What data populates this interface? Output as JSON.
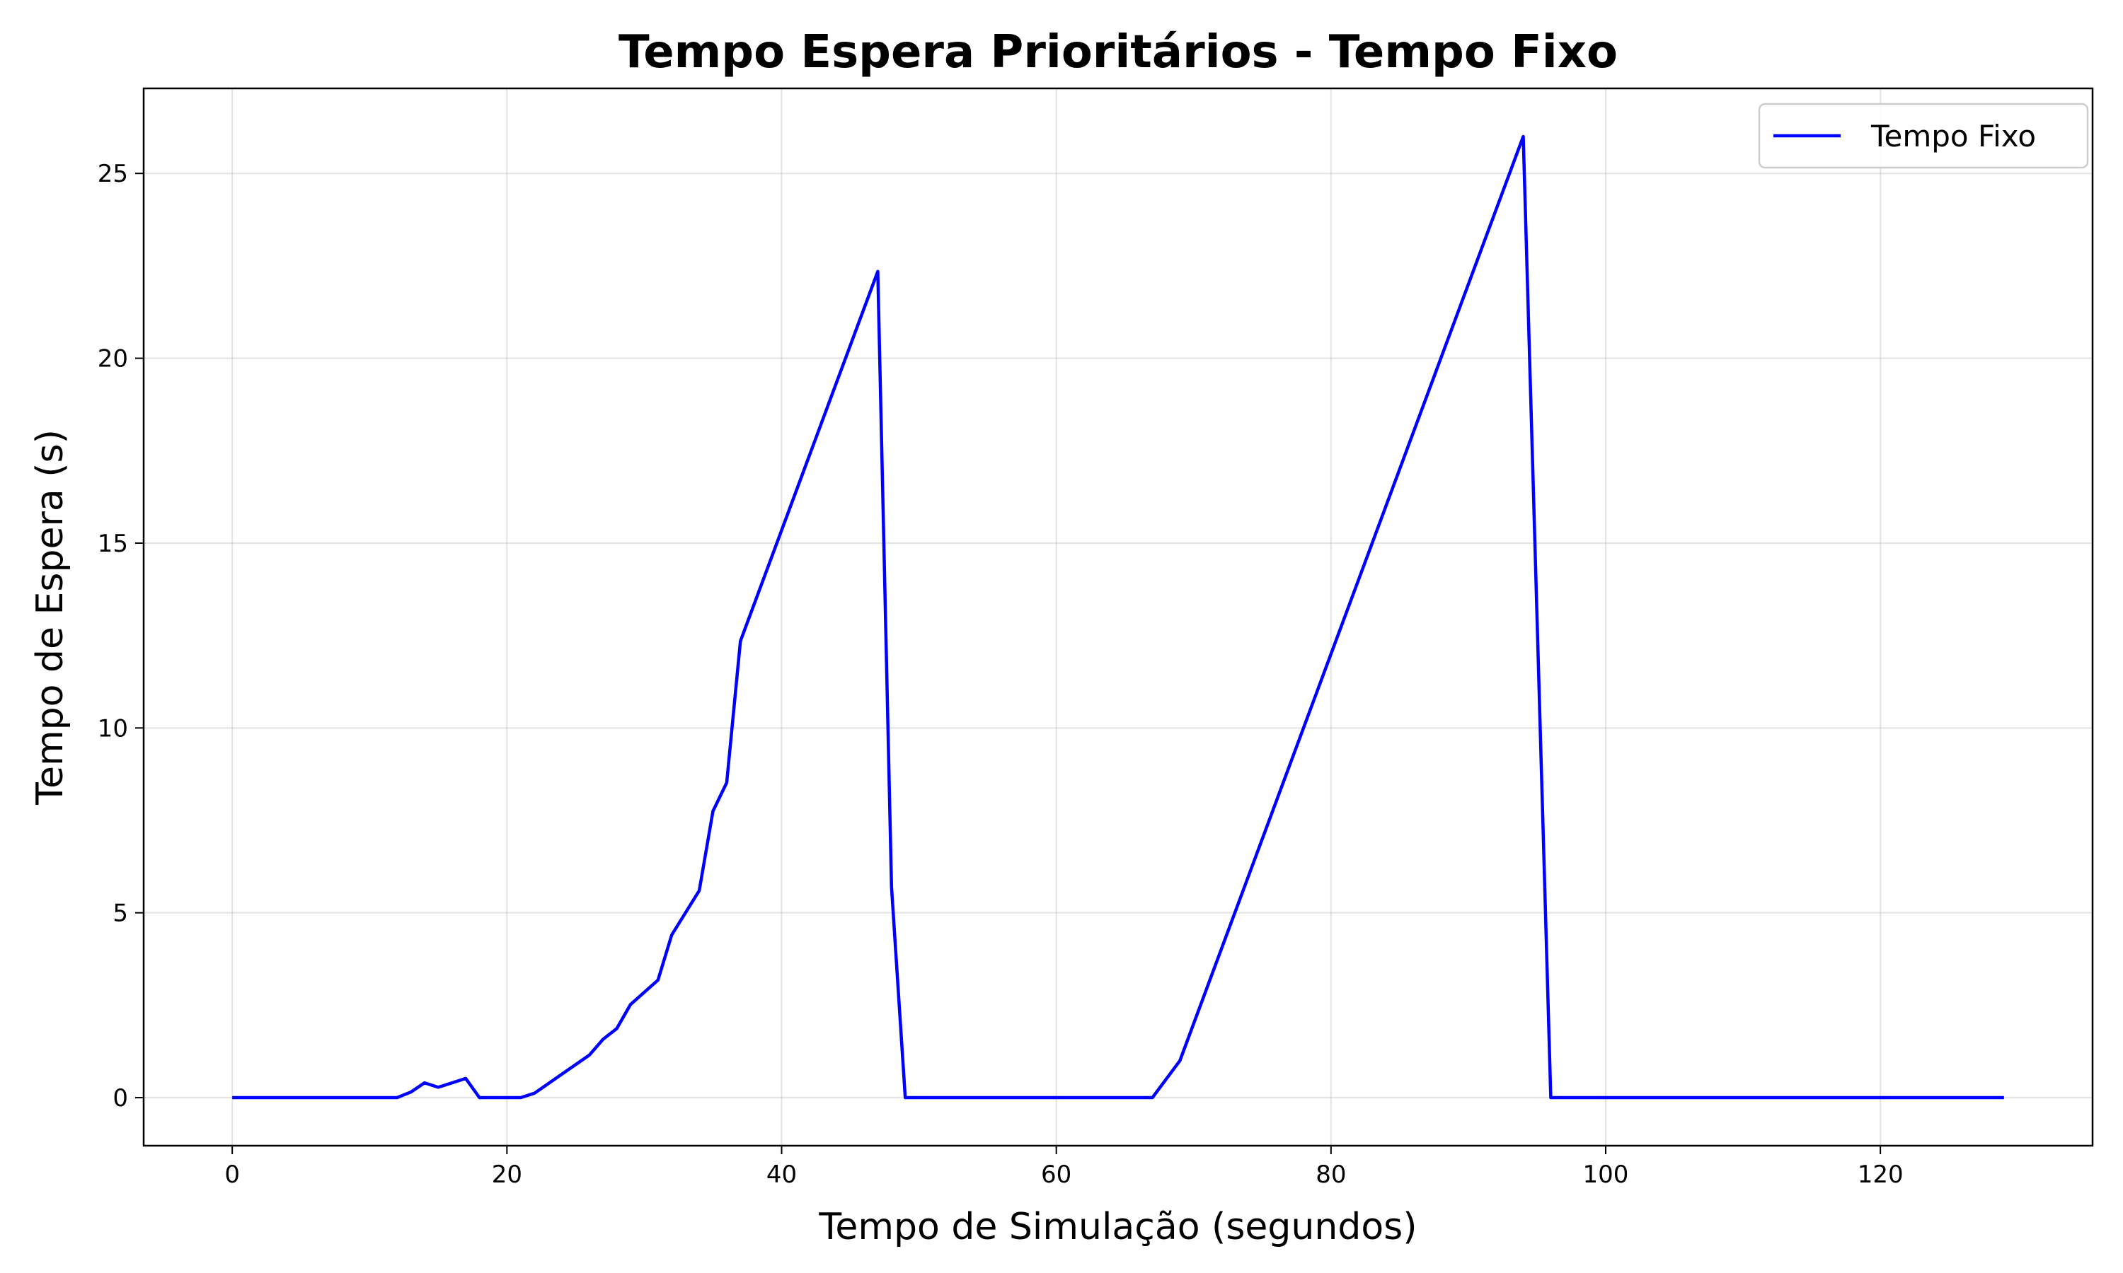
{
  "chart_data": {
    "type": "line",
    "title": "Tempo Espera Prioritários - Tempo Fixo",
    "xlabel": "Tempo de Simulação (segundos)",
    "ylabel": "Tempo de Espera (s)",
    "xlim": [
      -6.45,
      135.45
    ],
    "ylim": [
      -1.3,
      27.3
    ],
    "xticks": [
      0,
      20,
      40,
      60,
      80,
      100,
      120
    ],
    "yticks": [
      0,
      5,
      10,
      15,
      20,
      25
    ],
    "grid": true,
    "legend_position": "top-right",
    "series": [
      {
        "name": "Tempo Fixo",
        "color": "#0000ff",
        "x": [
          0,
          12,
          13,
          14,
          15,
          17,
          18,
          21,
          22,
          26,
          27,
          28,
          29,
          31,
          32,
          34,
          35,
          36,
          37,
          47,
          48,
          49,
          67,
          69,
          94,
          96,
          129
        ],
        "y": [
          0,
          0,
          0.15,
          0.4,
          0.28,
          0.52,
          0,
          0,
          0.12,
          1.15,
          1.58,
          1.87,
          2.52,
          3.18,
          4.4,
          5.6,
          7.75,
          8.52,
          12.35,
          22.35,
          5.7,
          0,
          0,
          1.0,
          26.0,
          0,
          0
        ]
      }
    ]
  }
}
